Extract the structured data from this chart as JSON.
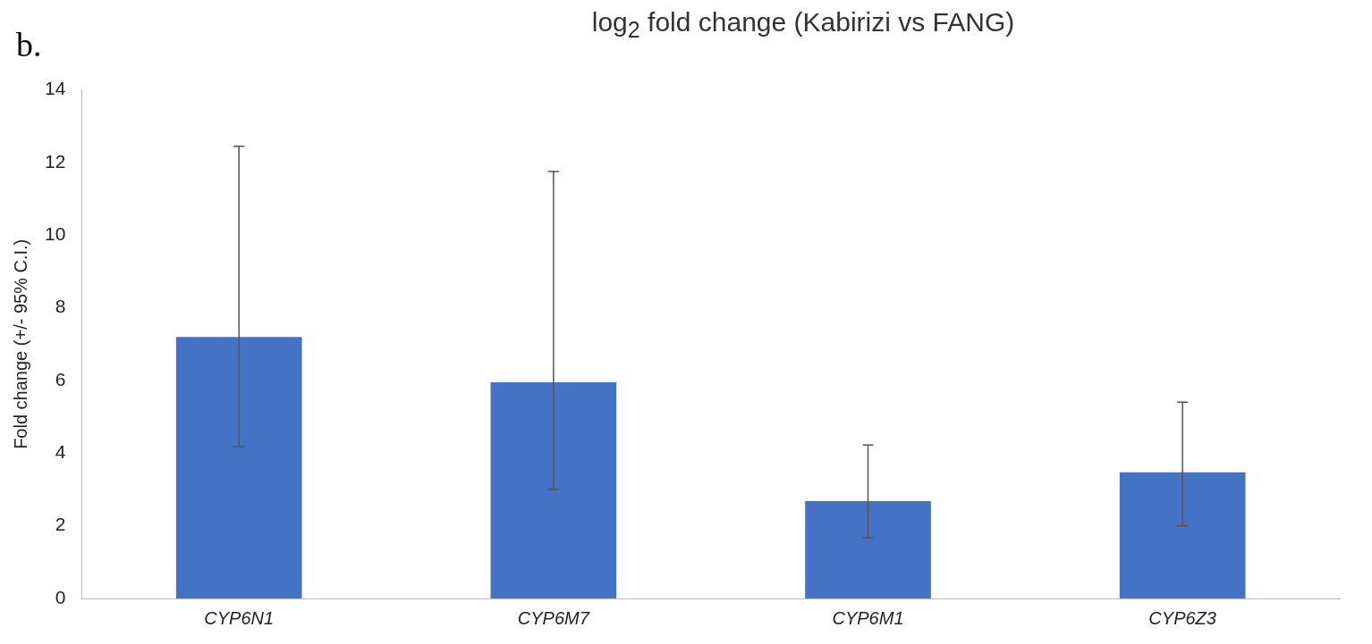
{
  "chart_data": {
    "type": "bar",
    "title": "log$_{2}$ fold change (Kabirizi vs FANG)",
    "ylabel": "Fold change (+/- 95% C.I.)",
    "annotations": [
      "b."
    ],
    "categories": [
      "CYP6N1",
      "CYP6M7",
      "CYP6M1",
      "CYP6Z3"
    ],
    "values": [
      7.2,
      5.95,
      2.68,
      3.47
    ],
    "color": "#4472c4",
    "errors": [
      [
        4.18,
        12.45
      ],
      [
        3.0,
        11.75
      ],
      [
        1.67,
        4.22
      ],
      [
        2.0,
        5.4
      ]
    ],
    "ylim": [
      0,
      14
    ],
    "yticks": [
      0,
      2,
      4,
      6,
      8,
      10,
      12,
      14
    ],
    "grid": false,
    "legend": false
  }
}
